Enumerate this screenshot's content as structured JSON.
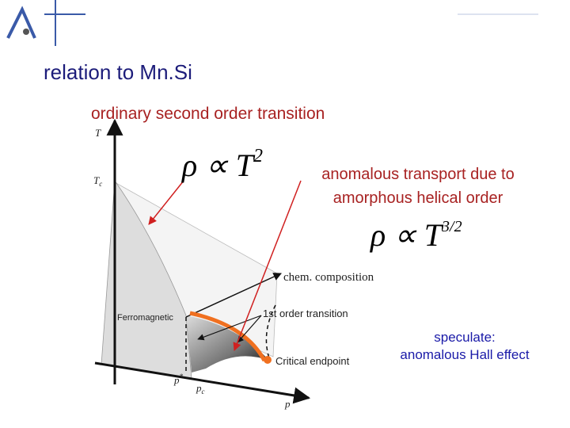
{
  "slide": {
    "title": "relation to Mn.Si",
    "annotations": {
      "ordinary": "ordinary second order transition",
      "anomalous": [
        "anomalous transport due to",
        "amorphous helical order"
      ],
      "speculate": [
        "speculate:",
        "anomalous Hall effect"
      ]
    },
    "formulas": [
      {
        "base": "ρ ∝ T",
        "exponent": "2"
      },
      {
        "base": "ρ ∝ T",
        "exponent": "3/2"
      }
    ],
    "diagram": {
      "y_axis": "T",
      "tc": {
        "base": "T",
        "sub": "c"
      },
      "x_axis": "p",
      "p_star": {
        "base": "p",
        "sup": "*"
      },
      "p_c": {
        "base": "p",
        "sub": "c"
      },
      "z_axis": "chem. composition",
      "first_order": "1st order transition",
      "ferromagnetic": "Ferromagnetic",
      "critical": "Critical endpoint"
    }
  }
}
